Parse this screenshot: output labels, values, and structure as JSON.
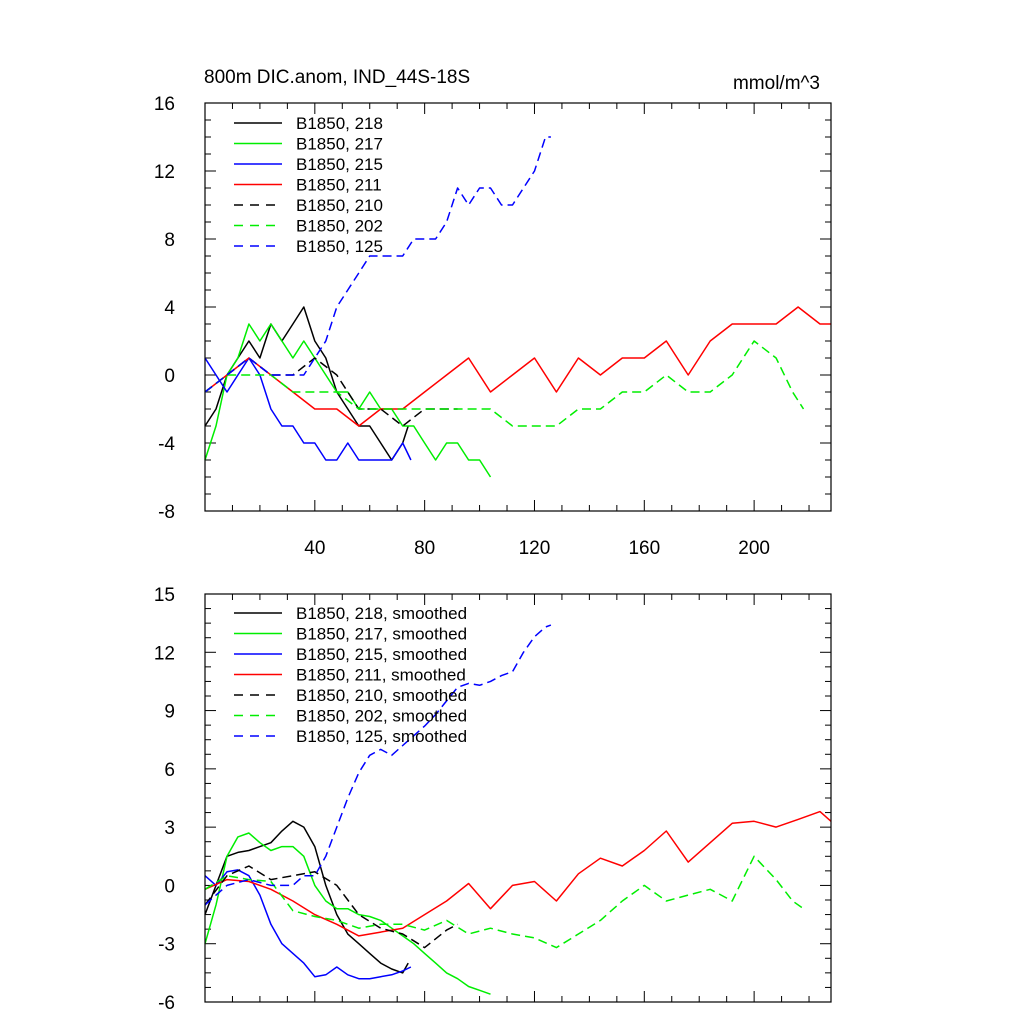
{
  "chart_data": [
    {
      "type": "line",
      "title": "800m DIC.anom, IND_44S-18S",
      "units": "mmol/m^3",
      "xlim": [
        0,
        228
      ],
      "ylim": [
        -8,
        16
      ],
      "xticks": [
        40,
        80,
        120,
        160,
        200
      ],
      "yticks": [
        -8,
        -4,
        0,
        4,
        8,
        12,
        16
      ],
      "xtick_labels": [
        "40",
        "80",
        "120",
        "160",
        "200"
      ],
      "ytick_labels": [
        "-8",
        "-4",
        "0",
        "4",
        "8",
        "12",
        "16"
      ],
      "legend_position": "top-left",
      "series": [
        {
          "name": "B1850, 218",
          "color": "#000000",
          "dash": "solid",
          "x": [
            0,
            4,
            8,
            12,
            16,
            20,
            24,
            28,
            32,
            36,
            40,
            44,
            48,
            52,
            56,
            60,
            64,
            68,
            72,
            74
          ],
          "y": [
            -3,
            -2,
            0,
            1,
            2,
            1,
            3,
            2,
            3,
            4,
            2,
            1,
            -1,
            -2,
            -3,
            -3,
            -4,
            -5,
            -4,
            -3
          ]
        },
        {
          "name": "B1850, 217",
          "color": "#00ee00",
          "dash": "solid",
          "x": [
            0,
            4,
            8,
            12,
            16,
            20,
            24,
            28,
            32,
            36,
            40,
            44,
            48,
            52,
            56,
            60,
            64,
            68,
            72,
            76,
            80,
            84,
            88,
            92,
            96,
            100,
            104
          ],
          "y": [
            -5,
            -3,
            0,
            1,
            3,
            2,
            3,
            2,
            1,
            2,
            1,
            0,
            -1,
            -1,
            -2,
            -1,
            -2,
            -2,
            -3,
            -3,
            -4,
            -5,
            -4,
            -4,
            -5,
            -5,
            -6
          ]
        },
        {
          "name": "B1850, 215",
          "color": "#0000ff",
          "dash": "solid",
          "x": [
            0,
            4,
            8,
            12,
            16,
            20,
            24,
            28,
            32,
            36,
            40,
            44,
            48,
            52,
            56,
            60,
            64,
            68,
            72,
            75
          ],
          "y": [
            1,
            0,
            -1,
            0,
            1,
            0,
            -2,
            -3,
            -3,
            -4,
            -4,
            -5,
            -5,
            -4,
            -5,
            -5,
            -5,
            -5,
            -4,
            -5
          ]
        },
        {
          "name": "B1850, 211",
          "color": "#ff0000",
          "dash": "solid",
          "x": [
            0,
            8,
            16,
            24,
            32,
            40,
            48,
            56,
            64,
            72,
            80,
            88,
            96,
            104,
            112,
            120,
            128,
            136,
            144,
            152,
            160,
            168,
            176,
            184,
            192,
            200,
            208,
            216,
            224,
            228
          ],
          "y": [
            -1,
            0,
            1,
            0,
            -1,
            -2,
            -2,
            -3,
            -2,
            -2,
            -1,
            0,
            1,
            -1,
            0,
            1,
            -1,
            1,
            0,
            1,
            1,
            2,
            0,
            2,
            3,
            3,
            3,
            4,
            3,
            3
          ]
        },
        {
          "name": "B1850, 210",
          "color": "#000000",
          "dash": "dashed",
          "x": [
            0,
            8,
            16,
            24,
            32,
            40,
            48,
            56,
            64,
            72,
            80,
            88,
            92
          ],
          "y": [
            -1,
            0,
            1,
            0,
            0,
            1,
            0,
            -2,
            -2,
            -3,
            -2,
            -2,
            -2
          ]
        },
        {
          "name": "B1850, 202",
          "color": "#00ee00",
          "dash": "dashed",
          "x": [
            0,
            8,
            16,
            24,
            32,
            40,
            48,
            56,
            64,
            72,
            80,
            88,
            96,
            104,
            112,
            120,
            128,
            136,
            144,
            152,
            160,
            168,
            176,
            184,
            192,
            200,
            208,
            214,
            218
          ],
          "y": [
            -1,
            0,
            0,
            0,
            -1,
            -1,
            -1,
            -2,
            -2,
            -2,
            -2,
            -2,
            -2,
            -2,
            -3,
            -3,
            -3,
            -2,
            -2,
            -1,
            -1,
            0,
            -1,
            -1,
            0,
            2,
            1,
            -1,
            -2
          ]
        },
        {
          "name": "B1850, 125",
          "color": "#0000ff",
          "dash": "dashed",
          "x": [
            0,
            8,
            16,
            24,
            32,
            36,
            40,
            44,
            48,
            52,
            56,
            60,
            64,
            68,
            72,
            76,
            80,
            84,
            88,
            92,
            96,
            100,
            104,
            108,
            112,
            116,
            120,
            124,
            126
          ],
          "y": [
            -1,
            0,
            1,
            0,
            0,
            0,
            1,
            2,
            4,
            5,
            6,
            7,
            7,
            7,
            7,
            8,
            8,
            8,
            9,
            11,
            10,
            11,
            11,
            10,
            10,
            11,
            12,
            14,
            14
          ]
        }
      ]
    },
    {
      "type": "line",
      "title": "",
      "units": "",
      "xlim": [
        0,
        228
      ],
      "ylim": [
        -6,
        15
      ],
      "xticks": [
        40,
        80,
        120,
        160,
        200
      ],
      "yticks": [
        -6,
        -3,
        0,
        3,
        6,
        9,
        12,
        15
      ],
      "xtick_labels": [],
      "ytick_labels": [
        "-6",
        "-3",
        "0",
        "3",
        "6",
        "9",
        "12",
        "15"
      ],
      "legend_position": "top-left",
      "series": [
        {
          "name": "B1850, 218, smoothed",
          "color": "#000000",
          "dash": "solid",
          "x": [
            0,
            4,
            8,
            12,
            16,
            20,
            24,
            28,
            32,
            36,
            40,
            44,
            48,
            52,
            56,
            60,
            64,
            68,
            72,
            74
          ],
          "y": [
            -1.5,
            0,
            1.5,
            1.7,
            1.8,
            2,
            2.2,
            2.8,
            3.3,
            3,
            2,
            0,
            -1.5,
            -2.5,
            -3,
            -3.5,
            -4,
            -4.3,
            -4.5,
            -4
          ]
        },
        {
          "name": "B1850, 217, smoothed",
          "color": "#00ee00",
          "dash": "solid",
          "x": [
            0,
            4,
            8,
            12,
            16,
            20,
            24,
            28,
            32,
            36,
            40,
            44,
            48,
            52,
            56,
            60,
            64,
            68,
            72,
            76,
            80,
            84,
            88,
            92,
            96,
            100,
            104
          ],
          "y": [
            -3,
            -1,
            1.5,
            2.5,
            2.7,
            2.2,
            1.8,
            2,
            2,
            1.5,
            0,
            -0.8,
            -1.2,
            -1.2,
            -1.5,
            -1.6,
            -1.8,
            -2.2,
            -2.6,
            -3,
            -3.5,
            -4,
            -4.5,
            -4.8,
            -5.2,
            -5.4,
            -5.6
          ]
        },
        {
          "name": "B1850, 215, smoothed",
          "color": "#0000ff",
          "dash": "solid",
          "x": [
            0,
            4,
            8,
            12,
            16,
            20,
            24,
            28,
            32,
            36,
            40,
            44,
            48,
            52,
            56,
            60,
            64,
            68,
            72,
            75
          ],
          "y": [
            0.5,
            0,
            0.7,
            0.8,
            0.5,
            -0.5,
            -2,
            -3,
            -3.5,
            -4,
            -4.7,
            -4.6,
            -4.2,
            -4.6,
            -4.8,
            -4.8,
            -4.7,
            -4.6,
            -4.4,
            -4.2
          ]
        },
        {
          "name": "B1850, 211, smoothed",
          "color": "#ff0000",
          "dash": "solid",
          "x": [
            0,
            8,
            16,
            24,
            32,
            40,
            48,
            56,
            64,
            72,
            80,
            88,
            96,
            104,
            112,
            120,
            128,
            136,
            144,
            152,
            160,
            168,
            176,
            184,
            192,
            200,
            208,
            216,
            224,
            228
          ],
          "y": [
            -0.2,
            0.3,
            0.2,
            -0.2,
            -0.8,
            -1.5,
            -2,
            -2.6,
            -2.4,
            -2.2,
            -1.5,
            -0.8,
            0.1,
            -1.2,
            0,
            0.2,
            -0.8,
            0.6,
            1.4,
            1,
            1.8,
            2.8,
            1.2,
            2.2,
            3.2,
            3.3,
            3,
            3.4,
            3.8,
            3.3
          ]
        },
        {
          "name": "B1850, 210, smoothed",
          "color": "#000000",
          "dash": "dashed",
          "x": [
            0,
            8,
            16,
            24,
            32,
            40,
            48,
            56,
            64,
            72,
            80,
            88,
            92
          ],
          "y": [
            -1,
            0.5,
            1,
            0.3,
            0.5,
            0.7,
            0,
            -1.5,
            -2.2,
            -2.5,
            -3.2,
            -2.3,
            -2
          ]
        },
        {
          "name": "B1850, 202, smoothed",
          "color": "#00ee00",
          "dash": "dashed",
          "x": [
            0,
            8,
            16,
            24,
            32,
            40,
            48,
            56,
            64,
            72,
            80,
            88,
            96,
            104,
            112,
            120,
            128,
            136,
            144,
            152,
            160,
            168,
            176,
            184,
            192,
            200,
            208,
            214,
            218
          ],
          "y": [
            -0.2,
            0.5,
            0.3,
            0.2,
            -1.3,
            -1.6,
            -1.8,
            -2.2,
            -2,
            -2,
            -2.3,
            -1.8,
            -2.5,
            -2.2,
            -2.5,
            -2.7,
            -3.2,
            -2.5,
            -1.8,
            -0.8,
            0,
            -0.8,
            -0.5,
            -0.2,
            -0.8,
            1.5,
            0.3,
            -0.8,
            -1.2
          ]
        },
        {
          "name": "B1850, 125, smoothed",
          "color": "#0000ff",
          "dash": "dashed",
          "x": [
            0,
            8,
            16,
            24,
            32,
            36,
            40,
            44,
            48,
            52,
            56,
            60,
            64,
            68,
            72,
            76,
            80,
            84,
            88,
            92,
            96,
            100,
            104,
            108,
            112,
            116,
            120,
            124,
            126
          ],
          "y": [
            -1,
            0,
            0.3,
            0,
            0,
            0.5,
            0.5,
            1.5,
            3,
            4.5,
            5.8,
            6.7,
            7,
            6.7,
            7.2,
            7.7,
            8.2,
            8.8,
            9.5,
            10.2,
            10.4,
            10.3,
            10.5,
            10.8,
            11,
            12,
            12.8,
            13.3,
            13.4
          ]
        }
      ]
    }
  ]
}
